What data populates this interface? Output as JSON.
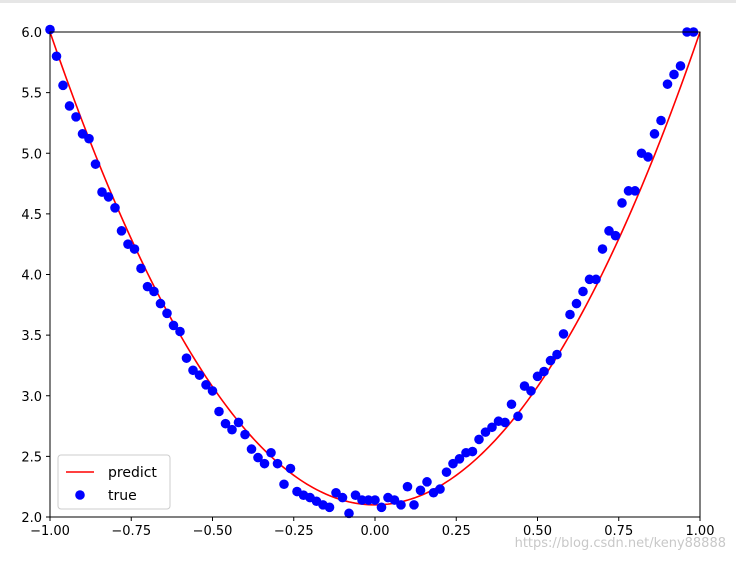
{
  "watermark": "https://blog.csdn.net/keny88888",
  "chart_data": {
    "type": "scatter",
    "xlim": [
      -1.0,
      1.0
    ],
    "ylim": [
      2.0,
      6.0
    ],
    "xticks": [
      -1.0,
      -0.75,
      -0.5,
      -0.25,
      0.0,
      0.25,
      0.5,
      0.75,
      1.0
    ],
    "xtick_labels": [
      "−1.00",
      "−0.75",
      "−0.50",
      "−0.25",
      "0.00",
      "0.25",
      "0.50",
      "0.75",
      "1.00"
    ],
    "yticks": [
      2.0,
      2.5,
      3.0,
      3.5,
      4.0,
      4.5,
      5.0,
      5.5,
      6.0
    ],
    "ytick_labels": [
      "2.0",
      "2.5",
      "3.0",
      "3.5",
      "4.0",
      "4.5",
      "5.0",
      "5.5",
      "6.0"
    ],
    "grid": false,
    "legend_placement": "lower-left",
    "colors": {
      "predict": "#ff0000",
      "true": "#0000ff"
    },
    "series": [
      {
        "name": "predict",
        "kind": "line",
        "model": {
          "a": 3.9,
          "b": 0.0,
          "c": 2.1
        },
        "x_range": [
          -1.0,
          1.0
        ]
      },
      {
        "name": "true",
        "kind": "scatter",
        "points": [
          [
            -1.0,
            6.02
          ],
          [
            -0.98,
            5.8
          ],
          [
            -0.96,
            5.56
          ],
          [
            -0.94,
            5.39
          ],
          [
            -0.92,
            5.3
          ],
          [
            -0.9,
            5.16
          ],
          [
            -0.88,
            5.12
          ],
          [
            -0.86,
            4.91
          ],
          [
            -0.84,
            4.68
          ],
          [
            -0.82,
            4.64
          ],
          [
            -0.8,
            4.55
          ],
          [
            -0.78,
            4.36
          ],
          [
            -0.76,
            4.25
          ],
          [
            -0.74,
            4.21
          ],
          [
            -0.72,
            4.05
          ],
          [
            -0.7,
            3.9
          ],
          [
            -0.68,
            3.86
          ],
          [
            -0.66,
            3.76
          ],
          [
            -0.64,
            3.68
          ],
          [
            -0.62,
            3.58
          ],
          [
            -0.6,
            3.53
          ],
          [
            -0.58,
            3.31
          ],
          [
            -0.56,
            3.21
          ],
          [
            -0.54,
            3.17
          ],
          [
            -0.52,
            3.09
          ],
          [
            -0.5,
            3.04
          ],
          [
            -0.48,
            2.87
          ],
          [
            -0.46,
            2.77
          ],
          [
            -0.44,
            2.72
          ],
          [
            -0.42,
            2.78
          ],
          [
            -0.4,
            2.68
          ],
          [
            -0.38,
            2.56
          ],
          [
            -0.36,
            2.49
          ],
          [
            -0.34,
            2.44
          ],
          [
            -0.32,
            2.53
          ],
          [
            -0.3,
            2.44
          ],
          [
            -0.28,
            2.27
          ],
          [
            -0.26,
            2.4
          ],
          [
            -0.24,
            2.21
          ],
          [
            -0.22,
            2.18
          ],
          [
            -0.2,
            2.16
          ],
          [
            -0.18,
            2.13
          ],
          [
            -0.16,
            2.1
          ],
          [
            -0.14,
            2.08
          ],
          [
            -0.12,
            2.2
          ],
          [
            -0.1,
            2.16
          ],
          [
            -0.08,
            2.03
          ],
          [
            -0.06,
            2.18
          ],
          [
            -0.04,
            2.14
          ],
          [
            -0.02,
            2.14
          ],
          [
            0.0,
            2.14
          ],
          [
            0.02,
            2.08
          ],
          [
            0.04,
            2.16
          ],
          [
            0.06,
            2.14
          ],
          [
            0.08,
            2.1
          ],
          [
            0.1,
            2.25
          ],
          [
            0.12,
            2.1
          ],
          [
            0.14,
            2.22
          ],
          [
            0.16,
            2.29
          ],
          [
            0.18,
            2.2
          ],
          [
            0.2,
            2.23
          ],
          [
            0.22,
            2.37
          ],
          [
            0.24,
            2.44
          ],
          [
            0.26,
            2.48
          ],
          [
            0.28,
            2.53
          ],
          [
            0.3,
            2.54
          ],
          [
            0.32,
            2.64
          ],
          [
            0.34,
            2.7
          ],
          [
            0.36,
            2.74
          ],
          [
            0.38,
            2.79
          ],
          [
            0.4,
            2.78
          ],
          [
            0.42,
            2.93
          ],
          [
            0.44,
            2.83
          ],
          [
            0.46,
            3.08
          ],
          [
            0.48,
            3.04
          ],
          [
            0.5,
            3.16
          ],
          [
            0.52,
            3.2
          ],
          [
            0.54,
            3.29
          ],
          [
            0.56,
            3.34
          ],
          [
            0.58,
            3.51
          ],
          [
            0.6,
            3.67
          ],
          [
            0.62,
            3.76
          ],
          [
            0.64,
            3.86
          ],
          [
            0.66,
            3.96
          ],
          [
            0.68,
            3.96
          ],
          [
            0.7,
            4.21
          ],
          [
            0.72,
            4.36
          ],
          [
            0.74,
            4.32
          ],
          [
            0.76,
            4.59
          ],
          [
            0.78,
            4.69
          ],
          [
            0.8,
            4.69
          ],
          [
            0.82,
            5.0
          ],
          [
            0.84,
            4.97
          ],
          [
            0.86,
            5.16
          ],
          [
            0.88,
            5.27
          ],
          [
            0.9,
            5.57
          ],
          [
            0.92,
            5.65
          ],
          [
            0.94,
            5.72
          ],
          [
            0.96,
            6.0
          ],
          [
            0.98,
            6.0
          ]
        ]
      }
    ]
  }
}
